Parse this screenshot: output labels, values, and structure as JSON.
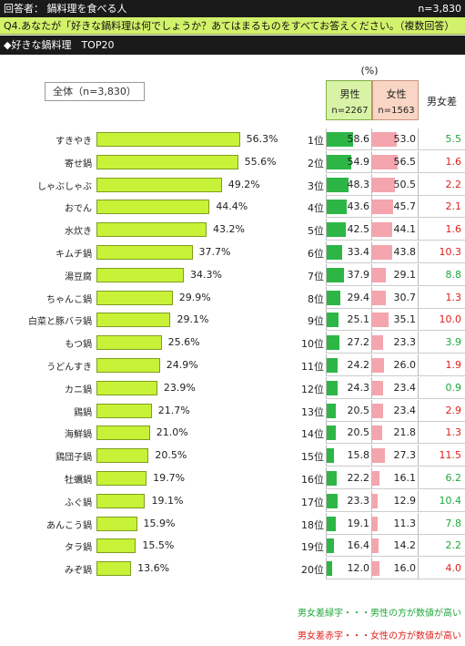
{
  "header": {
    "respondents": "回答者： 鍋料理を食べる人",
    "n": "n=3,830"
  },
  "question": "Q4.あなたが「好きな鍋料理は何でしょうか？あてはまるものをすべてお答えください。（複数回答）",
  "section": "◆好きな鍋料理　TOP20",
  "unit": "(%)",
  "overall_label": "全体（n=3,830）",
  "columns": {
    "male": {
      "label": "男性",
      "n": "n=2267",
      "color": "#2db646"
    },
    "female": {
      "label": "女性",
      "n": "n=1563",
      "color": "#f4a5ae"
    },
    "diff": {
      "label": "男女差"
    }
  },
  "colors": {
    "bar": "#c8f237",
    "male_diff": "#1fa83a",
    "female_diff": "#e0201b"
  },
  "chart_data": {
    "type": "bar",
    "categories": [
      "すきやき",
      "寄せ鍋",
      "しゃぶしゃぶ",
      "おでん",
      "水炊き",
      "キムチ鍋",
      "湯豆腐",
      "ちゃんこ鍋",
      "白菜と豚バラ鍋",
      "もつ鍋",
      "うどんすき",
      "カニ鍋",
      "鶏鍋",
      "海鮮鍋",
      "鶏団子鍋",
      "牡蠣鍋",
      "ふぐ鍋",
      "あんこう鍋",
      "タラ鍋",
      "みぞ鍋"
    ],
    "series": [
      {
        "name": "全体（n=3,830）",
        "values": [
          56.3,
          55.6,
          49.2,
          44.4,
          43.2,
          37.7,
          34.3,
          29.9,
          29.1,
          25.6,
          24.9,
          23.9,
          21.7,
          21.0,
          20.5,
          19.7,
          19.1,
          15.9,
          15.5,
          13.6
        ]
      },
      {
        "name": "男性",
        "values": [
          58.6,
          54.9,
          48.3,
          43.6,
          42.5,
          33.4,
          37.9,
          29.4,
          25.1,
          27.2,
          24.2,
          24.3,
          20.5,
          20.5,
          15.8,
          22.2,
          23.3,
          19.1,
          16.4,
          12.0
        ]
      },
      {
        "name": "女性",
        "values": [
          53.0,
          56.5,
          50.5,
          45.7,
          44.1,
          43.8,
          29.1,
          30.7,
          35.1,
          23.3,
          26.0,
          23.4,
          23.4,
          21.8,
          27.3,
          16.1,
          12.9,
          11.3,
          14.2,
          16.0
        ]
      }
    ],
    "value_labels": [
      "56.3%",
      "55.6%",
      "49.2%",
      "44.4%",
      "43.2%",
      "37.7%",
      "34.3%",
      "29.9%",
      "29.1%",
      "25.6%",
      "24.9%",
      "23.9%",
      "21.7%",
      "21.0%",
      "20.5%",
      "19.7%",
      "19.1%",
      "15.9%",
      "15.5%",
      "13.6%"
    ],
    "ranks": [
      "1位",
      "2位",
      "3位",
      "4位",
      "5位",
      "6位",
      "7位",
      "8位",
      "9位",
      "10位",
      "11位",
      "12位",
      "13位",
      "14位",
      "15位",
      "16位",
      "17位",
      "18位",
      "19位",
      "20位"
    ],
    "male_labels": [
      "58.6",
      "54.9",
      "48.3",
      "43.6",
      "42.5",
      "33.4",
      "37.9",
      "29.4",
      "25.1",
      "27.2",
      "24.2",
      "24.3",
      "20.5",
      "20.5",
      "15.8",
      "22.2",
      "23.3",
      "19.1",
      "16.4",
      "12.0"
    ],
    "female_labels": [
      "53.0",
      "56.5",
      "50.5",
      "45.7",
      "44.1",
      "43.8",
      "29.1",
      "30.7",
      "35.1",
      "23.3",
      "26.0",
      "23.4",
      "23.4",
      "21.8",
      "27.3",
      "16.1",
      "12.9",
      "11.3",
      "14.2",
      "16.0"
    ],
    "diff": [
      "5.5",
      "1.6",
      "2.2",
      "2.1",
      "1.6",
      "10.3",
      "8.8",
      "1.3",
      "10.0",
      "3.9",
      "1.9",
      "0.9",
      "2.9",
      "1.3",
      "11.5",
      "6.2",
      "10.4",
      "7.8",
      "2.2",
      "4.0"
    ],
    "diff_side": [
      "male",
      "female",
      "female",
      "female",
      "female",
      "female",
      "male",
      "female",
      "female",
      "male",
      "female",
      "male",
      "female",
      "female",
      "female",
      "male",
      "male",
      "male",
      "male",
      "female"
    ],
    "xlim": [
      0,
      100
    ]
  },
  "notes": {
    "male": "男女差緑字・・・男性の方が数値が高い",
    "female": "男女差赤字・・・女性の方が数値が高い"
  }
}
